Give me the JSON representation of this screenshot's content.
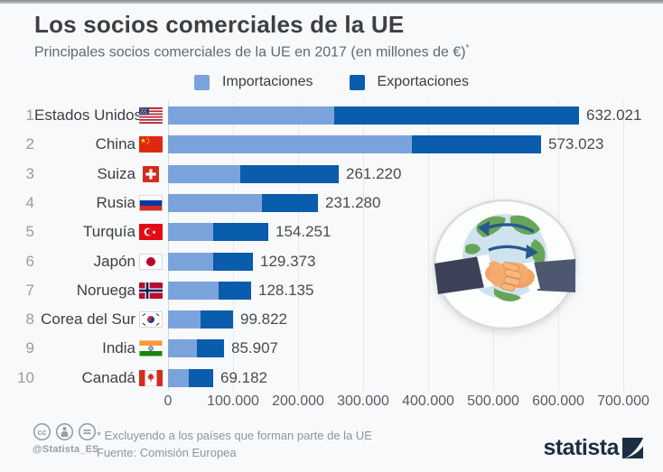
{
  "header": {
    "title": "Los socios comerciales de la UE",
    "subtitle": "Principales socios comerciales de la UE en 2017 (en millones de €)",
    "subtitle_note_mark": "*"
  },
  "legend": {
    "imports_label": "Importaciones",
    "exports_label": "Exportaciones"
  },
  "colors": {
    "imports": "#7aa3dc",
    "exports": "#0a5cad",
    "brand_dark": "#1b2e44",
    "background": "#f8f9fa"
  },
  "chart_data": {
    "type": "bar",
    "orientation": "horizontal",
    "stacked": true,
    "unit": "millones de €",
    "grid": true,
    "legend_position": "top",
    "xlim": [
      0,
      700000
    ],
    "x_ticks": [
      "0",
      "100.000",
      "200.000",
      "300.000",
      "400.000",
      "500.000",
      "600.000",
      "700.000"
    ],
    "x_tick_values": [
      0,
      100000,
      200000,
      300000,
      400000,
      500000,
      600000,
      700000
    ],
    "categories": [
      "Estados Unidos",
      "China",
      "Suiza",
      "Rusia",
      "Turquía",
      "Japón",
      "Noruega",
      "Corea del Sur",
      "India",
      "Canadá"
    ],
    "series": [
      {
        "name": "Importaciones",
        "values": [
          256176,
          374823,
          110434,
          145089,
          69761,
          68875,
          78013,
          49967,
          44221,
          31536
        ]
      },
      {
        "name": "Exportaciones",
        "values": [
          375845,
          198200,
          150786,
          86191,
          84490,
          60498,
          50122,
          49855,
          41686,
          37646
        ]
      }
    ],
    "rows": [
      {
        "rank": "1",
        "country": "Estados Unidos",
        "flag": "us",
        "total_label": "632.021"
      },
      {
        "rank": "2",
        "country": "China",
        "flag": "cn",
        "total_label": "573.023"
      },
      {
        "rank": "3",
        "country": "Suiza",
        "flag": "ch",
        "total_label": "261.220"
      },
      {
        "rank": "4",
        "country": "Rusia",
        "flag": "ru",
        "total_label": "231.280"
      },
      {
        "rank": "5",
        "country": "Turquía",
        "flag": "tr",
        "total_label": "154.251"
      },
      {
        "rank": "6",
        "country": "Japón",
        "flag": "jp",
        "total_label": "129.373"
      },
      {
        "rank": "7",
        "country": "Noruega",
        "flag": "no",
        "total_label": "128.135"
      },
      {
        "rank": "8",
        "country": "Corea del Sur",
        "flag": "kr",
        "total_label": "99.822"
      },
      {
        "rank": "9",
        "country": "India",
        "flag": "in",
        "total_label": "85.907"
      },
      {
        "rank": "10",
        "country": "Canadá",
        "flag": "ca",
        "total_label": "69.182"
      }
    ]
  },
  "illustration": {
    "description": "handshake in front of globe with exchange arrows"
  },
  "footer": {
    "license_icons": [
      "cc-icon",
      "cc-by-icon",
      "cc-nd-icon"
    ],
    "handle": "@Statista_ES",
    "footnote": "* Excluyendo a los países que forman parte de la UE",
    "source": "Fuente: Comisión Europea",
    "brand": "statista"
  }
}
